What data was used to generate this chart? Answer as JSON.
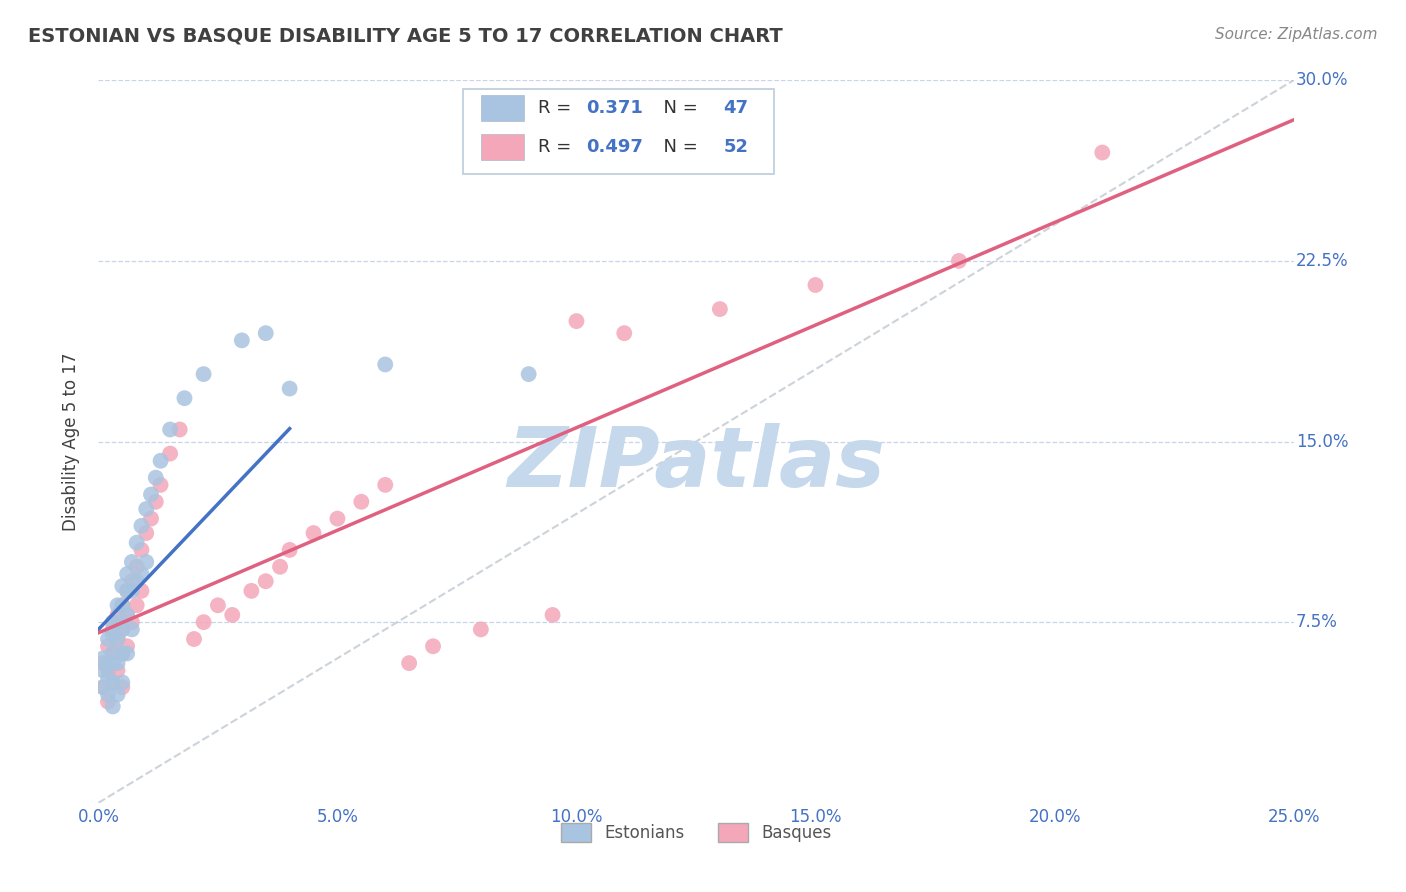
{
  "title": "ESTONIAN VS BASQUE DISABILITY AGE 5 TO 17 CORRELATION CHART",
  "source": "Source: ZipAtlas.com",
  "ylabel": "Disability Age 5 to 17",
  "xlim": [
    0.0,
    0.25
  ],
  "ylim": [
    0.0,
    0.3
  ],
  "xticks": [
    0.0,
    0.05,
    0.1,
    0.15,
    0.2,
    0.25
  ],
  "yticks": [
    0.0,
    0.075,
    0.15,
    0.225,
    0.3
  ],
  "xticklabels": [
    "0.0%",
    "5.0%",
    "10.0%",
    "15.0%",
    "20.0%",
    "25.0%"
  ],
  "yticklabels_right": [
    "30.0%",
    "22.5%",
    "15.0%",
    "7.5%",
    ""
  ],
  "r_estonian": 0.371,
  "n_estonian": 47,
  "r_basque": 0.497,
  "n_basque": 52,
  "estonian_color": "#a8c4e0",
  "basque_color": "#f4a7b9",
  "estonian_line_color": "#4472c4",
  "basque_line_color": "#e06080",
  "diagonal_color": "#c0c8d0",
  "title_color": "#404040",
  "axis_color": "#4472c4",
  "grid_color": "#c8d4e8",
  "background_color": "#ffffff",
  "estonian_x": [
    0.001,
    0.001,
    0.001,
    0.002,
    0.002,
    0.002,
    0.002,
    0.003,
    0.003,
    0.003,
    0.003,
    0.003,
    0.003,
    0.004,
    0.004,
    0.004,
    0.004,
    0.004,
    0.005,
    0.005,
    0.005,
    0.005,
    0.005,
    0.006,
    0.006,
    0.006,
    0.006,
    0.007,
    0.007,
    0.007,
    0.008,
    0.008,
    0.009,
    0.009,
    0.01,
    0.01,
    0.011,
    0.012,
    0.013,
    0.015,
    0.018,
    0.022,
    0.03,
    0.035,
    0.04,
    0.06,
    0.09
  ],
  "estonian_y": [
    0.06,
    0.055,
    0.048,
    0.068,
    0.058,
    0.052,
    0.045,
    0.075,
    0.07,
    0.062,
    0.058,
    0.05,
    0.04,
    0.082,
    0.075,
    0.068,
    0.058,
    0.045,
    0.09,
    0.082,
    0.072,
    0.062,
    0.05,
    0.095,
    0.088,
    0.078,
    0.062,
    0.1,
    0.088,
    0.072,
    0.108,
    0.092,
    0.115,
    0.095,
    0.122,
    0.1,
    0.128,
    0.135,
    0.142,
    0.155,
    0.168,
    0.178,
    0.192,
    0.195,
    0.172,
    0.182,
    0.178
  ],
  "basque_x": [
    0.001,
    0.001,
    0.002,
    0.002,
    0.002,
    0.003,
    0.003,
    0.003,
    0.004,
    0.004,
    0.004,
    0.005,
    0.005,
    0.005,
    0.005,
    0.006,
    0.006,
    0.006,
    0.007,
    0.007,
    0.008,
    0.008,
    0.009,
    0.009,
    0.01,
    0.011,
    0.012,
    0.013,
    0.015,
    0.017,
    0.02,
    0.022,
    0.025,
    0.028,
    0.032,
    0.035,
    0.038,
    0.04,
    0.045,
    0.05,
    0.055,
    0.06,
    0.065,
    0.07,
    0.08,
    0.095,
    0.1,
    0.11,
    0.13,
    0.15,
    0.18,
    0.21
  ],
  "basque_y": [
    0.058,
    0.048,
    0.065,
    0.055,
    0.042,
    0.072,
    0.062,
    0.05,
    0.078,
    0.068,
    0.055,
    0.082,
    0.072,
    0.062,
    0.048,
    0.088,
    0.078,
    0.065,
    0.092,
    0.075,
    0.098,
    0.082,
    0.105,
    0.088,
    0.112,
    0.118,
    0.125,
    0.132,
    0.145,
    0.155,
    0.068,
    0.075,
    0.082,
    0.078,
    0.088,
    0.092,
    0.098,
    0.105,
    0.112,
    0.118,
    0.125,
    0.132,
    0.058,
    0.065,
    0.072,
    0.078,
    0.2,
    0.195,
    0.205,
    0.215,
    0.225,
    0.27
  ]
}
